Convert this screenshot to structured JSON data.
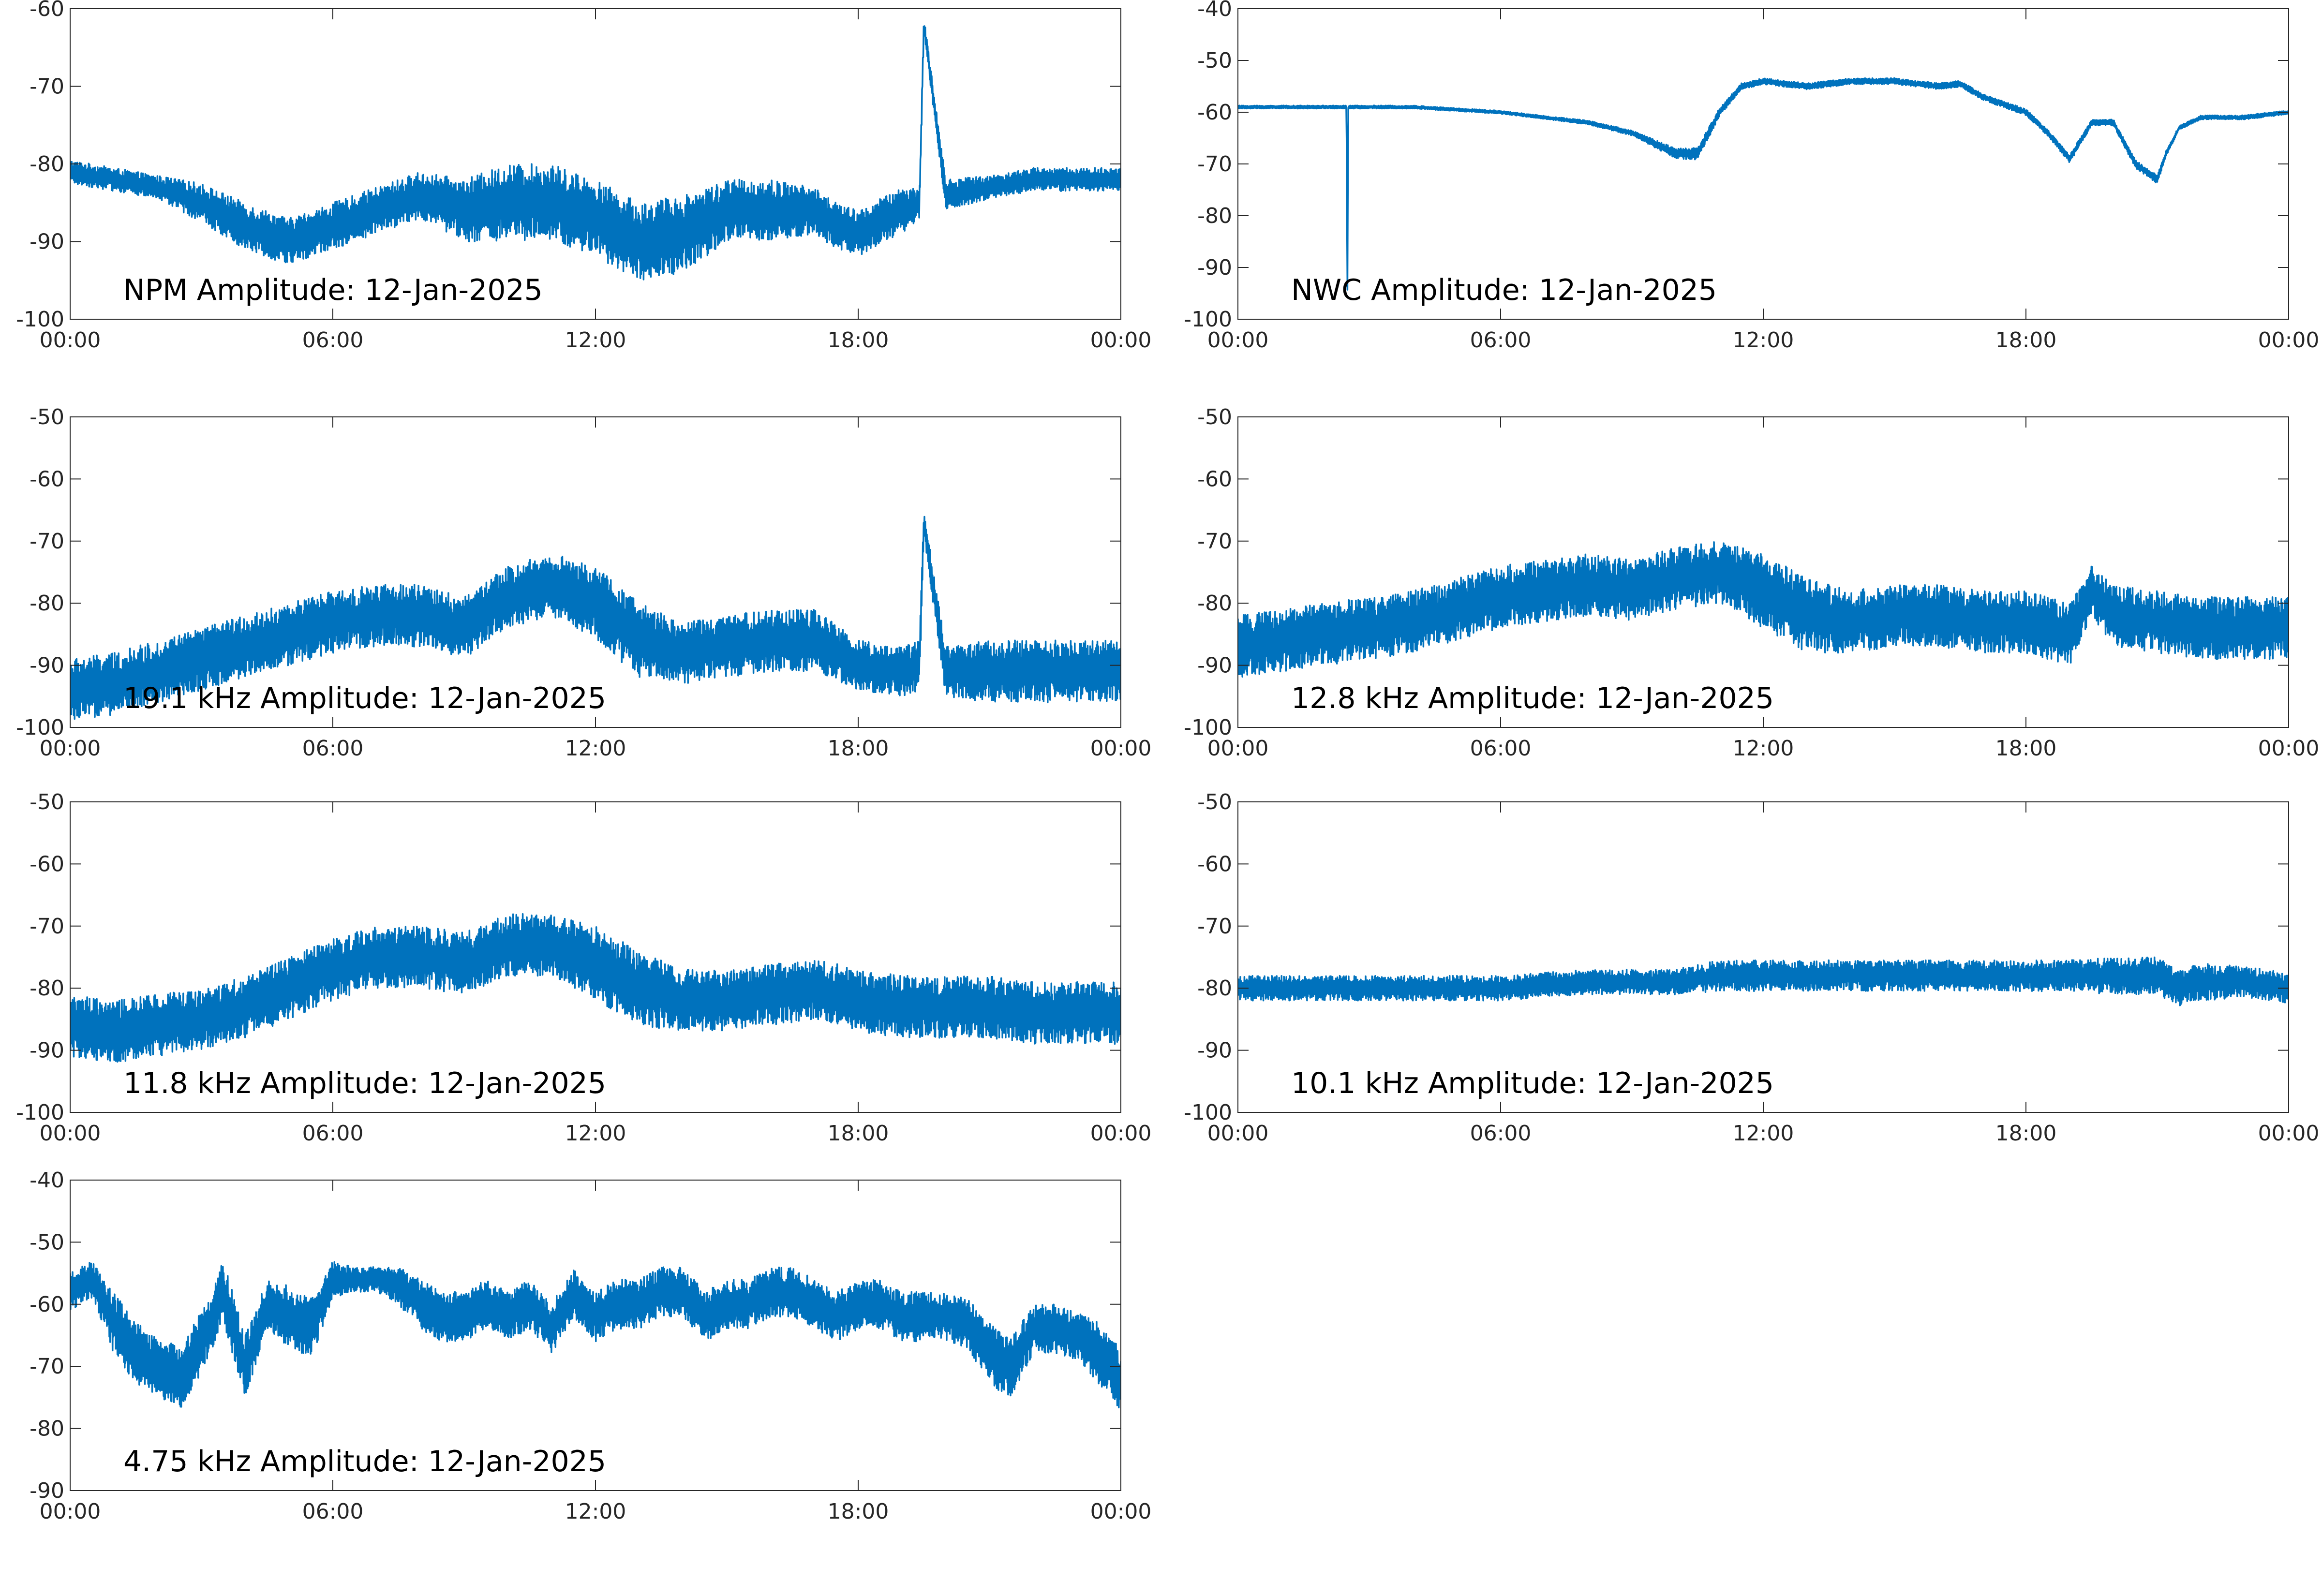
{
  "colors": {
    "series": "#0072BD",
    "axis": "#262626",
    "background": "#ffffff"
  },
  "x_ticks": [
    "00:00",
    "06:00",
    "12:00",
    "18:00",
    "00:00"
  ],
  "chart_data": [
    {
      "type": "line",
      "title": "NPM Amplitude: 12-Jan-2025",
      "xlabel": "",
      "ylabel": "",
      "xlim": [
        "00:00",
        "24:00"
      ],
      "ylim": [
        -100,
        -60
      ],
      "yticks": [
        -100,
        -90,
        -80,
        -70,
        -60
      ],
      "grid": false,
      "series": [
        {
          "x": [
            0,
            1,
            2,
            3,
            4,
            5,
            6,
            7,
            8,
            9,
            10,
            11,
            12,
            13,
            14,
            15,
            16,
            17,
            17.5,
            18,
            19,
            19.4,
            19.5,
            20,
            21,
            22,
            23,
            24
          ],
          "values": [
            -81,
            -82,
            -83,
            -85,
            -88,
            -90,
            -88,
            -86,
            -84,
            -86,
            -85,
            -85,
            -87,
            -90,
            -89,
            -86,
            -86,
            -86,
            -88,
            -89,
            -86,
            -85,
            -62,
            -84,
            -83,
            -82,
            -82,
            -82
          ],
          "amplitude": [
            1.5,
            1.5,
            1.5,
            2.5,
            3,
            3,
            3,
            3,
            3,
            4,
            5,
            5,
            5,
            5,
            5,
            4,
            4,
            3,
            3,
            3,
            3,
            2,
            1,
            2,
            1.5,
            1.5,
            1.5,
            1.5
          ]
        }
      ]
    },
    {
      "type": "line",
      "title": "NWC Amplitude: 12-Jan-2025",
      "xlabel": "",
      "ylabel": "",
      "xlim": [
        "00:00",
        "24:00"
      ],
      "ylim": [
        -100,
        -40
      ],
      "yticks": [
        -100,
        -90,
        -80,
        -70,
        -60,
        -50,
        -40
      ],
      "grid": false,
      "series": [
        {
          "x": [
            0,
            1,
            2,
            2.48,
            2.5,
            2.52,
            3,
            4,
            5,
            6,
            7,
            8,
            9,
            10,
            10.5,
            11,
            11.5,
            12,
            13,
            14,
            15,
            16,
            16.5,
            17,
            18,
            18.5,
            19,
            19.5,
            20,
            20.5,
            21,
            21.2,
            21.5,
            22,
            23,
            24
          ],
          "values": [
            -59,
            -59,
            -59,
            -59,
            -97,
            -59,
            -59,
            -59,
            -59.5,
            -60,
            -61,
            -62,
            -64,
            -68,
            -68,
            -60,
            -55,
            -54,
            -55,
            -54,
            -54,
            -55,
            -54.5,
            -57,
            -60,
            -64,
            -69,
            -62,
            -62,
            -70,
            -73,
            -68,
            -63,
            -61,
            -61,
            -60
          ],
          "amplitude": [
            0.3,
            0.3,
            0.3,
            0.3,
            0.3,
            0.3,
            0.3,
            0.3,
            0.3,
            0.3,
            0.3,
            0.4,
            0.5,
            1,
            1.2,
            0.8,
            0.6,
            0.6,
            0.6,
            0.6,
            0.6,
            0.6,
            0.6,
            0.6,
            0.6,
            0.6,
            0.8,
            0.6,
            0.6,
            0.8,
            0.8,
            0.6,
            0.4,
            0.4,
            0.4,
            0.4
          ]
        }
      ]
    },
    {
      "type": "line",
      "title": "19.1 kHz Amplitude: 12-Jan-2025",
      "xlabel": "",
      "ylabel": "",
      "xlim": [
        "00:00",
        "24:00"
      ],
      "ylim": [
        -100,
        -50
      ],
      "yticks": [
        -100,
        -90,
        -80,
        -70,
        -60,
        -50
      ],
      "grid": false,
      "series": [
        {
          "x": [
            0,
            1,
            2,
            3,
            4,
            5,
            6,
            7,
            8,
            9,
            10,
            11,
            12,
            13,
            14,
            15,
            16,
            17,
            18,
            19,
            19.4,
            19.5,
            20,
            21,
            22,
            23,
            24
          ],
          "values": [
            -94,
            -93,
            -91,
            -89,
            -87,
            -85,
            -83,
            -82,
            -82,
            -84,
            -79,
            -77,
            -80,
            -86,
            -88,
            -87,
            -86,
            -86,
            -90,
            -91,
            -90,
            -67,
            -91,
            -91,
            -91,
            -91,
            -91
          ],
          "amplitude": [
            5,
            5,
            5,
            5,
            5,
            5,
            5,
            5,
            5,
            5,
            5,
            5,
            6,
            6,
            5,
            5,
            5,
            5,
            4,
            4,
            4,
            2,
            4,
            5,
            5,
            5,
            5
          ]
        }
      ]
    },
    {
      "type": "line",
      "title": "12.8 kHz Amplitude: 12-Jan-2025",
      "xlabel": "",
      "ylabel": "",
      "xlim": [
        "00:00",
        "24:00"
      ],
      "ylim": [
        -100,
        -50
      ],
      "yticks": [
        -100,
        -90,
        -80,
        -70,
        -60,
        -50
      ],
      "grid": false,
      "series": [
        {
          "x": [
            0,
            1,
            2,
            3,
            4,
            5,
            6,
            7,
            8,
            9,
            10,
            11,
            12,
            13,
            14,
            15,
            16,
            17,
            18,
            19,
            19.5,
            20,
            21,
            22,
            23,
            24
          ],
          "values": [
            -87,
            -86,
            -85,
            -84,
            -83,
            -81,
            -79,
            -78,
            -77,
            -78,
            -76,
            -75,
            -78,
            -82,
            -83,
            -82,
            -82,
            -83,
            -83,
            -85,
            -78,
            -82,
            -83,
            -84,
            -84,
            -84
          ],
          "amplitude": [
            5,
            5,
            5,
            5,
            5,
            5,
            5,
            5,
            5,
            5,
            5,
            5,
            6,
            6,
            5,
            5,
            5,
            5,
            5,
            5,
            4,
            5,
            5,
            5,
            5,
            5
          ]
        }
      ]
    },
    {
      "type": "line",
      "title": "11.8 kHz Amplitude: 12-Jan-2025",
      "xlabel": "",
      "ylabel": "",
      "xlim": [
        "00:00",
        "24:00"
      ],
      "ylim": [
        -100,
        -50
      ],
      "yticks": [
        -100,
        -90,
        -80,
        -70,
        -60,
        -50
      ],
      "grid": false,
      "series": [
        {
          "x": [
            0,
            1,
            2,
            3,
            4,
            5,
            6,
            7,
            8,
            9,
            10,
            11,
            12,
            13,
            14,
            15,
            16,
            17,
            18,
            19,
            20,
            21,
            22,
            23,
            24
          ],
          "values": [
            -86,
            -87,
            -86,
            -85,
            -83,
            -80,
            -77,
            -75,
            -75,
            -76,
            -73,
            -73,
            -76,
            -80,
            -82,
            -82,
            -81,
            -80,
            -82,
            -83,
            -83,
            -83,
            -84,
            -84,
            -84
          ],
          "amplitude": [
            5,
            5,
            5,
            5,
            5,
            5,
            5,
            5,
            5,
            5,
            5,
            5,
            6,
            6,
            5,
            5,
            5,
            5,
            5,
            5,
            5,
            5,
            5,
            5,
            5
          ]
        }
      ]
    },
    {
      "type": "line",
      "title": "10.1 kHz Amplitude: 12-Jan-2025",
      "xlabel": "",
      "ylabel": "",
      "xlim": [
        "00:00",
        "24:00"
      ],
      "ylim": [
        -100,
        -50
      ],
      "yticks": [
        -100,
        -90,
        -80,
        -70,
        -60,
        -50
      ],
      "grid": false,
      "series": [
        {
          "x": [
            0,
            2,
            4,
            6,
            8,
            10,
            11,
            12,
            14,
            16,
            18,
            19,
            20,
            21,
            21.5,
            22,
            23,
            24
          ],
          "values": [
            -80,
            -80,
            -80,
            -80,
            -79,
            -79,
            -78,
            -78,
            -78,
            -78,
            -78,
            -78,
            -78,
            -78,
            -80,
            -79,
            -79,
            -80
          ],
          "amplitude": [
            2,
            2,
            2,
            2,
            2,
            2,
            2.5,
            2.5,
            2.5,
            2.5,
            2.5,
            2.5,
            3,
            3,
            3,
            3,
            2.5,
            2.5
          ]
        }
      ]
    },
    {
      "type": "line",
      "title": "4.75 kHz Amplitude: 12-Jan-2025",
      "xlabel": "",
      "ylabel": "",
      "xlim": [
        "00:00",
        "24:00"
      ],
      "ylim": [
        -90,
        -40
      ],
      "yticks": [
        -90,
        -80,
        -70,
        -60,
        -50,
        -40
      ],
      "grid": false,
      "series": [
        {
          "x": [
            0,
            0.5,
            1,
            1.5,
            2,
            2.5,
            3,
            3.5,
            4,
            4.5,
            5,
            5.5,
            6,
            6.5,
            7,
            7.5,
            8,
            8.5,
            9,
            9.5,
            10,
            10.5,
            11,
            11.5,
            12,
            12.5,
            13,
            13.5,
            14,
            14.5,
            15,
            15.5,
            16,
            16.5,
            17,
            17.5,
            18,
            18.5,
            19,
            19.5,
            20,
            20.5,
            21,
            21.5,
            22,
            22.5,
            23,
            23.5,
            24
          ],
          "values": [
            -58,
            -56,
            -63,
            -68,
            -70,
            -72,
            -66,
            -58,
            -70,
            -60,
            -62,
            -64,
            -56,
            -56,
            -56,
            -57,
            -60,
            -62,
            -62,
            -60,
            -62,
            -60,
            -64,
            -58,
            -62,
            -60,
            -60,
            -58,
            -58,
            -62,
            -60,
            -60,
            -58,
            -58,
            -60,
            -62,
            -60,
            -60,
            -62,
            -62,
            -62,
            -63,
            -68,
            -70,
            -64,
            -64,
            -65,
            -68,
            -72
          ],
          "amplitude": [
            3,
            3,
            5,
            5,
            5,
            5,
            5,
            5,
            5,
            4,
            5,
            5,
            3,
            2,
            2,
            3,
            4,
            4,
            4,
            4,
            4,
            4,
            4,
            4,
            4,
            4,
            4,
            4,
            4,
            4,
            4,
            4,
            4,
            4,
            4,
            4,
            4,
            4,
            4,
            4,
            4,
            4,
            5,
            5,
            4,
            4,
            4,
            5,
            5
          ]
        }
      ]
    }
  ]
}
